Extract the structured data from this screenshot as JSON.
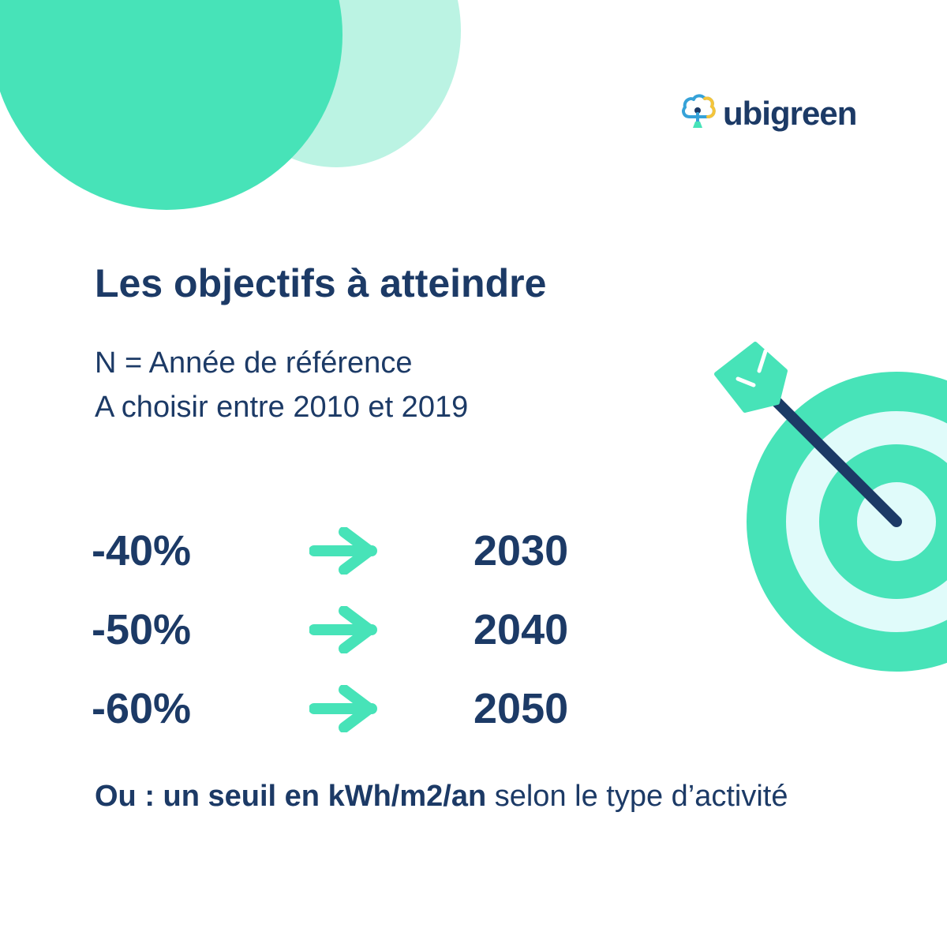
{
  "brand": {
    "name": "ubigreen",
    "logo_icon": "tree-cloud-icon",
    "colors": {
      "navy": "#1c3a66",
      "green": "#47e3b8",
      "light_green": "#bbf3e3",
      "ice": "#e0fbfa",
      "yellow": "#f5c43a",
      "blue": "#36a2d8"
    }
  },
  "title": "Les objectifs à atteindre",
  "subtitle": {
    "line1": "N = Année de référence",
    "line2": "A choisir entre 2010 et 2019"
  },
  "targets": [
    {
      "reduction": "-40%",
      "year": "2030"
    },
    {
      "reduction": "-50%",
      "year": "2040"
    },
    {
      "reduction": "-60%",
      "year": "2050"
    }
  ],
  "footer": {
    "bold": "Ou : un seuil en kWh/m2/an",
    "rest": " selon le type d’activité"
  },
  "icons": {
    "arrow": "arrow-right-icon",
    "target": "dartboard-target-icon"
  }
}
